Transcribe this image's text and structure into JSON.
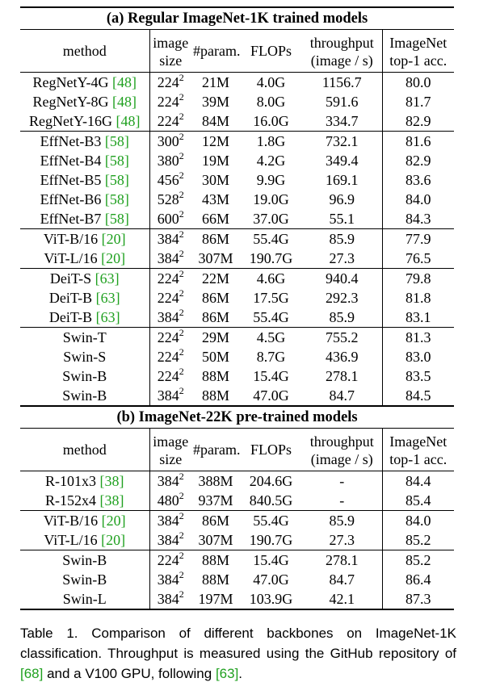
{
  "sections": [
    {
      "title": "(a) Regular ImageNet-1K trained models",
      "header": {
        "method": "method",
        "image_size": [
          "image",
          "size"
        ],
        "params": "#param.",
        "flops": "FLOPs",
        "throughput": [
          "throughput",
          "(image / s)"
        ],
        "acc": [
          "ImageNet",
          "top-1 acc."
        ]
      },
      "groups": [
        [
          {
            "name": "RegNetY-4G",
            "cite": "48",
            "res": "224",
            "exp": "2",
            "params": "21M",
            "flops": "4.0G",
            "thr": "1156.7",
            "acc": "80.0"
          },
          {
            "name": "RegNetY-8G",
            "cite": "48",
            "res": "224",
            "exp": "2",
            "params": "39M",
            "flops": "8.0G",
            "thr": "591.6",
            "acc": "81.7"
          },
          {
            "name": "RegNetY-16G",
            "cite": "48",
            "res": "224",
            "exp": "2",
            "params": "84M",
            "flops": "16.0G",
            "thr": "334.7",
            "acc": "82.9"
          }
        ],
        [
          {
            "name": "EffNet-B3",
            "cite": "58",
            "res": "300",
            "exp": "2",
            "params": "12M",
            "flops": "1.8G",
            "thr": "732.1",
            "acc": "81.6"
          },
          {
            "name": "EffNet-B4",
            "cite": "58",
            "res": "380",
            "exp": "2",
            "params": "19M",
            "flops": "4.2G",
            "thr": "349.4",
            "acc": "82.9"
          },
          {
            "name": "EffNet-B5",
            "cite": "58",
            "res": "456",
            "exp": "2",
            "params": "30M",
            "flops": "9.9G",
            "thr": "169.1",
            "acc": "83.6"
          },
          {
            "name": "EffNet-B6",
            "cite": "58",
            "res": "528",
            "exp": "2",
            "params": "43M",
            "flops": "19.0G",
            "thr": "96.9",
            "acc": "84.0"
          },
          {
            "name": "EffNet-B7",
            "cite": "58",
            "res": "600",
            "exp": "2",
            "params": "66M",
            "flops": "37.0G",
            "thr": "55.1",
            "acc": "84.3"
          }
        ],
        [
          {
            "name": "ViT-B/16",
            "cite": "20",
            "res": "384",
            "exp": "2",
            "params": "86M",
            "flops": "55.4G",
            "thr": "85.9",
            "acc": "77.9"
          },
          {
            "name": "ViT-L/16",
            "cite": "20",
            "res": "384",
            "exp": "2",
            "params": "307M",
            "flops": "190.7G",
            "thr": "27.3",
            "acc": "76.5"
          }
        ],
        [
          {
            "name": "DeiT-S",
            "cite": "63",
            "res": "224",
            "exp": "2",
            "params": "22M",
            "flops": "4.6G",
            "thr": "940.4",
            "acc": "79.8"
          },
          {
            "name": "DeiT-B",
            "cite": "63",
            "res": "224",
            "exp": "2",
            "params": "86M",
            "flops": "17.5G",
            "thr": "292.3",
            "acc": "81.8"
          },
          {
            "name": "DeiT-B",
            "cite": "63",
            "res": "384",
            "exp": "2",
            "params": "86M",
            "flops": "55.4G",
            "thr": "85.9",
            "acc": "83.1"
          }
        ],
        [
          {
            "name": "Swin-T",
            "cite": "",
            "res": "224",
            "exp": "2",
            "params": "29M",
            "flops": "4.5G",
            "thr": "755.2",
            "acc": "81.3"
          },
          {
            "name": "Swin-S",
            "cite": "",
            "res": "224",
            "exp": "2",
            "params": "50M",
            "flops": "8.7G",
            "thr": "436.9",
            "acc": "83.0"
          },
          {
            "name": "Swin-B",
            "cite": "",
            "res": "224",
            "exp": "2",
            "params": "88M",
            "flops": "15.4G",
            "thr": "278.1",
            "acc": "83.5"
          },
          {
            "name": "Swin-B",
            "cite": "",
            "res": "384",
            "exp": "2",
            "params": "88M",
            "flops": "47.0G",
            "thr": "84.7",
            "acc": "84.5"
          }
        ]
      ]
    },
    {
      "title": "(b) ImageNet-22K pre-trained models",
      "header": {
        "method": "method",
        "image_size": [
          "image",
          "size"
        ],
        "params": "#param.",
        "flops": "FLOPs",
        "throughput": [
          "throughput",
          "(image / s)"
        ],
        "acc": [
          "ImageNet",
          "top-1 acc."
        ]
      },
      "groups": [
        [
          {
            "name": "R-101x3",
            "cite": "38",
            "res": "384",
            "exp": "2",
            "params": "388M",
            "flops": "204.6G",
            "thr": "-",
            "acc": "84.4"
          },
          {
            "name": "R-152x4",
            "cite": "38",
            "res": "480",
            "exp": "2",
            "params": "937M",
            "flops": "840.5G",
            "thr": "-",
            "acc": "85.4"
          }
        ],
        [
          {
            "name": "ViT-B/16",
            "cite": "20",
            "res": "384",
            "exp": "2",
            "params": "86M",
            "flops": "55.4G",
            "thr": "85.9",
            "acc": "84.0"
          },
          {
            "name": "ViT-L/16",
            "cite": "20",
            "res": "384",
            "exp": "2",
            "params": "307M",
            "flops": "190.7G",
            "thr": "27.3",
            "acc": "85.2"
          }
        ],
        [
          {
            "name": "Swin-B",
            "cite": "",
            "res": "224",
            "exp": "2",
            "params": "88M",
            "flops": "15.4G",
            "thr": "278.1",
            "acc": "85.2"
          },
          {
            "name": "Swin-B",
            "cite": "",
            "res": "384",
            "exp": "2",
            "params": "88M",
            "flops": "47.0G",
            "thr": "84.7",
            "acc": "86.4"
          },
          {
            "name": "Swin-L",
            "cite": "",
            "res": "384",
            "exp": "2",
            "params": "197M",
            "flops": "103.9G",
            "thr": "42.1",
            "acc": "87.3"
          }
        ]
      ]
    }
  ],
  "caption": [
    {
      "text": "Table 1. Comparison of different backbones on ImageNet-1K classification.  Throughput is measured using the GitHub repository of ",
      "cite": false
    },
    {
      "text": "[68]",
      "cite": true
    },
    {
      "text": " and a V100 GPU, following ",
      "cite": false
    },
    {
      "text": "[63]",
      "cite": true
    },
    {
      "text": ".",
      "cite": false
    }
  ]
}
